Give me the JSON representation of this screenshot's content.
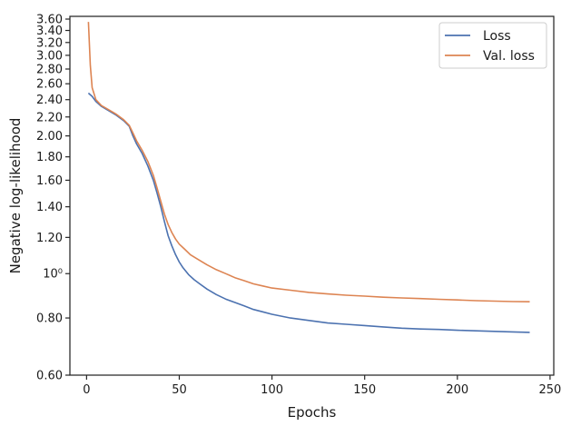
{
  "chart_data": {
    "type": "line",
    "xlabel": "Epochs",
    "ylabel": "Negative log-likelihood",
    "xlim": [
      -9,
      252
    ],
    "ylim": [
      0.6,
      3.65
    ],
    "yscale": "log",
    "grid": false,
    "legend_position": "top-right",
    "x_ticks": [
      0,
      50,
      100,
      150,
      200,
      250
    ],
    "x_tick_labels": [
      "0",
      "50",
      "100",
      "150",
      "200",
      "250"
    ],
    "y_ticks": [
      0.6,
      0.8,
      1.0,
      1.2,
      1.4,
      1.6,
      1.8,
      2.0,
      2.2,
      2.4,
      2.6,
      2.8,
      3.0,
      3.2,
      3.4,
      3.6
    ],
    "y_tick_labels": [
      "0.60",
      "0.80",
      "10⁰",
      "1.20",
      "1.40",
      "1.60",
      "1.80",
      "2.00",
      "2.20",
      "2.40",
      "2.60",
      "2.80",
      "3.00",
      "3.20",
      "3.40",
      "3.60"
    ],
    "series": [
      {
        "name": "Loss",
        "color": "#4c72b0",
        "points": [
          [
            1,
            2.48
          ],
          [
            3,
            2.44
          ],
          [
            5,
            2.38
          ],
          [
            8,
            2.32
          ],
          [
            12,
            2.27
          ],
          [
            16,
            2.22
          ],
          [
            20,
            2.16
          ],
          [
            23,
            2.1
          ],
          [
            25,
            2.0
          ],
          [
            27,
            1.92
          ],
          [
            30,
            1.83
          ],
          [
            33,
            1.72
          ],
          [
            36,
            1.6
          ],
          [
            38,
            1.5
          ],
          [
            40,
            1.4
          ],
          [
            42,
            1.3
          ],
          [
            44,
            1.21
          ],
          [
            46,
            1.15
          ],
          [
            48,
            1.1
          ],
          [
            50,
            1.06
          ],
          [
            52,
            1.03
          ],
          [
            55,
            0.995
          ],
          [
            58,
            0.97
          ],
          [
            61,
            0.95
          ],
          [
            65,
            0.925
          ],
          [
            70,
            0.9
          ],
          [
            75,
            0.88
          ],
          [
            80,
            0.865
          ],
          [
            85,
            0.85
          ],
          [
            90,
            0.835
          ],
          [
            95,
            0.825
          ],
          [
            100,
            0.815
          ],
          [
            110,
            0.8
          ],
          [
            120,
            0.79
          ],
          [
            130,
            0.78
          ],
          [
            140,
            0.775
          ],
          [
            150,
            0.77
          ],
          [
            160,
            0.765
          ],
          [
            170,
            0.76
          ],
          [
            180,
            0.757
          ],
          [
            190,
            0.755
          ],
          [
            200,
            0.752
          ],
          [
            210,
            0.75
          ],
          [
            220,
            0.748
          ],
          [
            230,
            0.746
          ],
          [
            239,
            0.744
          ]
        ]
      },
      {
        "name": "Val. loss",
        "color": "#dd8452",
        "points": [
          [
            1,
            3.55
          ],
          [
            2,
            2.85
          ],
          [
            3,
            2.55
          ],
          [
            5,
            2.4
          ],
          [
            8,
            2.33
          ],
          [
            12,
            2.28
          ],
          [
            16,
            2.23
          ],
          [
            20,
            2.17
          ],
          [
            23,
            2.11
          ],
          [
            25,
            2.03
          ],
          [
            27,
            1.95
          ],
          [
            30,
            1.86
          ],
          [
            33,
            1.76
          ],
          [
            36,
            1.64
          ],
          [
            38,
            1.54
          ],
          [
            40,
            1.44
          ],
          [
            42,
            1.35
          ],
          [
            44,
            1.28
          ],
          [
            46,
            1.23
          ],
          [
            48,
            1.19
          ],
          [
            50,
            1.16
          ],
          [
            53,
            1.13
          ],
          [
            56,
            1.1
          ],
          [
            60,
            1.075
          ],
          [
            65,
            1.045
          ],
          [
            70,
            1.02
          ],
          [
            75,
            1.0
          ],
          [
            80,
            0.98
          ],
          [
            85,
            0.965
          ],
          [
            90,
            0.95
          ],
          [
            95,
            0.94
          ],
          [
            100,
            0.93
          ],
          [
            110,
            0.92
          ],
          [
            120,
            0.91
          ],
          [
            130,
            0.903
          ],
          [
            140,
            0.897
          ],
          [
            150,
            0.893
          ],
          [
            160,
            0.888
          ],
          [
            170,
            0.885
          ],
          [
            180,
            0.882
          ],
          [
            190,
            0.879
          ],
          [
            200,
            0.876
          ],
          [
            210,
            0.873
          ],
          [
            220,
            0.871
          ],
          [
            230,
            0.869
          ],
          [
            239,
            0.868
          ]
        ]
      }
    ]
  }
}
